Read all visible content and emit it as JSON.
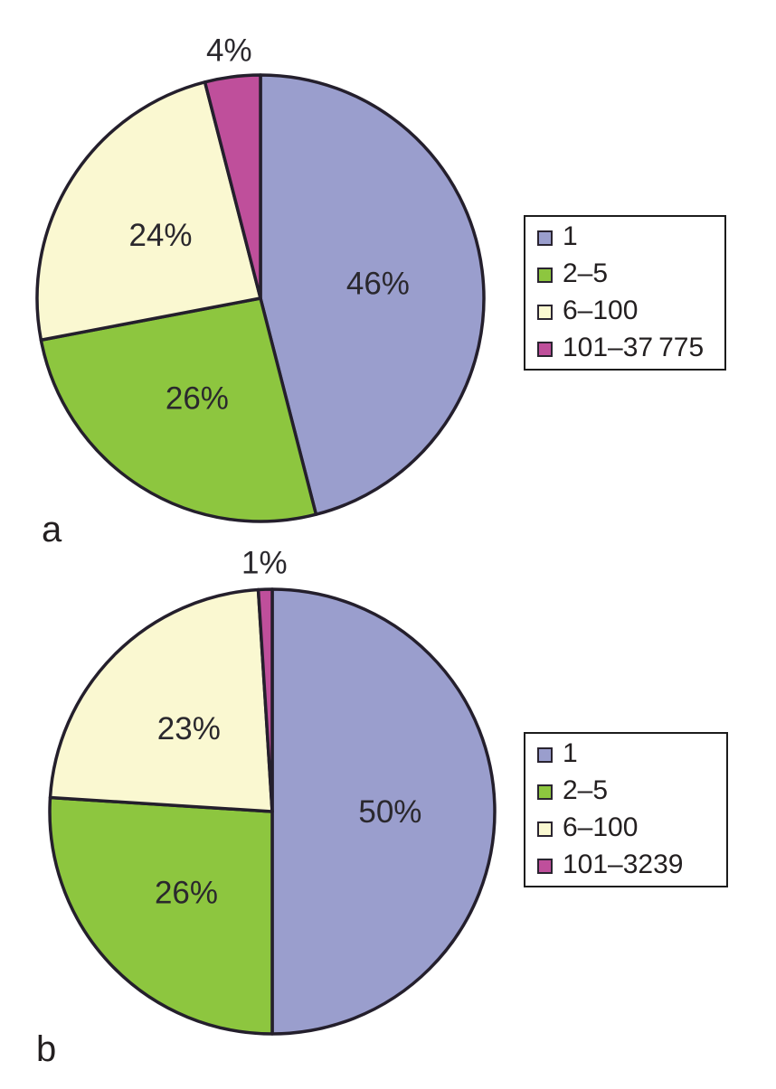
{
  "colors": {
    "purple": "#9a9ecd",
    "green": "#8dc63f",
    "pale_yellow": "#faf8d1",
    "magenta": "#bf4f9b",
    "outline": "#241f2c",
    "label_text": "#2a282d",
    "legend_border": "#1c1c1c"
  },
  "chart_data": [
    {
      "type": "pie",
      "panel_label": "a",
      "start_angle_deg": 0,
      "direction": "clockwise",
      "legend_position": "right",
      "slices": [
        {
          "legend": "1",
          "value": 46,
          "display": "46%",
          "color": "#9a9ecd",
          "label_inside": true
        },
        {
          "legend": "2–5",
          "value": 26,
          "display": "26%",
          "color": "#8dc63f",
          "label_inside": true
        },
        {
          "legend": "6–100",
          "value": 24,
          "display": "24%",
          "color": "#faf8d1",
          "label_inside": true
        },
        {
          "legend": "101–37 775",
          "value": 4,
          "display": "4%",
          "color": "#bf4f9b",
          "label_inside": false
        }
      ]
    },
    {
      "type": "pie",
      "panel_label": "b",
      "start_angle_deg": 0,
      "direction": "clockwise",
      "legend_position": "right",
      "slices": [
        {
          "legend": "1",
          "value": 50,
          "display": "50%",
          "color": "#9a9ecd",
          "label_inside": true
        },
        {
          "legend": "2–5",
          "value": 26,
          "display": "26%",
          "color": "#8dc63f",
          "label_inside": true
        },
        {
          "legend": "6–100",
          "value": 23,
          "display": "23%",
          "color": "#faf8d1",
          "label_inside": true
        },
        {
          "legend": "101–3239",
          "value": 1,
          "display": "1%",
          "color": "#bf4f9b",
          "label_inside": false
        }
      ]
    }
  ]
}
